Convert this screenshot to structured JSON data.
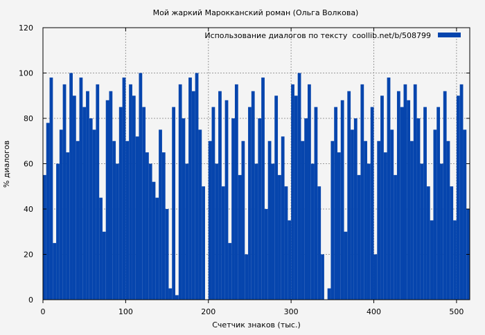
{
  "chart_data": {
    "type": "bar",
    "title": "Мой жаркий Марокканский роман (Ольга Волкова)",
    "xlabel": "Счетчик знаков (тыс.)",
    "ylabel": "% диалогов",
    "xlim": [
      0,
      516
    ],
    "ylim": [
      0,
      120
    ],
    "xticks": [
      0,
      100,
      200,
      300,
      400,
      500
    ],
    "yticks": [
      0,
      20,
      40,
      60,
      80,
      100,
      120
    ],
    "grid": true,
    "legend_position": "top-right",
    "series": [
      {
        "name": "Использование диалогов по тексту  coollib.net/b/508799",
        "color": "#0645ad",
        "bin_width": 4,
        "x": [
          0,
          4,
          8,
          12,
          16,
          20,
          24,
          28,
          32,
          36,
          40,
          44,
          48,
          52,
          56,
          60,
          64,
          68,
          72,
          76,
          80,
          84,
          88,
          92,
          96,
          100,
          104,
          108,
          112,
          116,
          120,
          124,
          128,
          132,
          136,
          140,
          144,
          148,
          152,
          156,
          160,
          164,
          168,
          172,
          176,
          180,
          184,
          188,
          192,
          196,
          200,
          204,
          208,
          212,
          216,
          220,
          224,
          228,
          232,
          236,
          240,
          244,
          248,
          252,
          256,
          260,
          264,
          268,
          272,
          276,
          280,
          284,
          288,
          292,
          296,
          300,
          304,
          308,
          312,
          316,
          320,
          324,
          328,
          332,
          336,
          340,
          344,
          348,
          352,
          356,
          360,
          364,
          368,
          372,
          376,
          380,
          384,
          388,
          392,
          396,
          400,
          404,
          408,
          412,
          416,
          420,
          424,
          428,
          432,
          436,
          440,
          444,
          448,
          452,
          456,
          460,
          464,
          468,
          472,
          476,
          480,
          484,
          488,
          492,
          496,
          500,
          504,
          508,
          512
        ],
        "values": [
          55,
          78,
          98,
          25,
          60,
          75,
          95,
          65,
          100,
          90,
          70,
          98,
          85,
          92,
          80,
          75,
          95,
          45,
          30,
          88,
          92,
          70,
          60,
          85,
          98,
          70,
          95,
          90,
          72,
          100,
          85,
          65,
          60,
          52,
          45,
          75,
          65,
          40,
          5,
          85,
          2,
          95,
          80,
          60,
          98,
          92,
          100,
          75,
          50,
          0,
          70,
          85,
          60,
          92,
          50,
          88,
          25,
          80,
          95,
          55,
          70,
          20,
          85,
          92,
          60,
          80,
          98,
          40,
          70,
          60,
          90,
          55,
          72,
          50,
          35,
          95,
          90,
          100,
          70,
          80,
          95,
          60,
          85,
          50,
          20,
          0,
          5,
          70,
          85,
          65,
          88,
          30,
          92,
          75,
          80,
          55,
          95,
          70,
          60,
          85,
          20,
          70,
          90,
          65,
          98,
          75,
          55,
          92,
          85,
          95,
          88,
          70,
          95,
          80,
          60,
          85,
          50,
          35,
          75,
          85,
          60,
          92,
          70,
          50,
          35,
          90,
          95,
          75,
          40
        ]
      }
    ]
  }
}
